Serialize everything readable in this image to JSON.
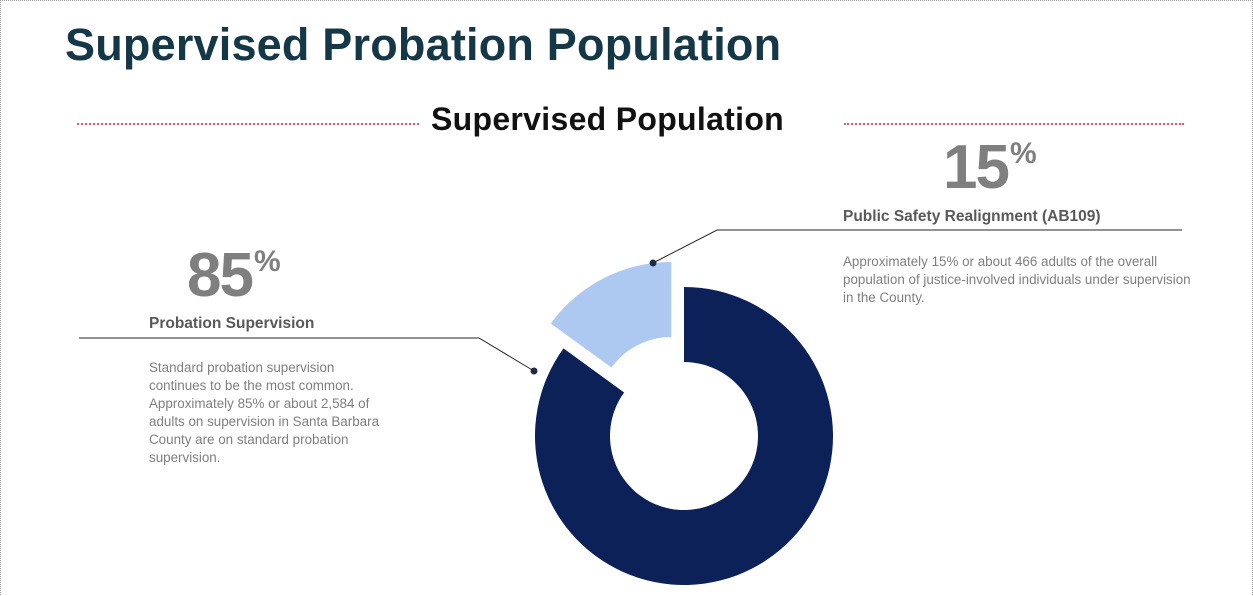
{
  "page": {
    "title": "Supervised Probation Population",
    "section_title": "Supervised Population"
  },
  "colors": {
    "title": "#153848",
    "probation": "#0b2157",
    "ab109": "#adc9f2",
    "divider_dots": "#d9586b",
    "annotation_text": "#7f7f7f"
  },
  "chart_data": {
    "type": "pie",
    "variant": "donut",
    "title": "Supervised Population",
    "slices": [
      {
        "name": "Public Safety Realignment (AB109)",
        "pct_label": "15",
        "pct_unit": "%",
        "value": 15,
        "count": 466,
        "color": "#adc9f2",
        "exploded": true,
        "description": "Approximately 15% or about 466 adults of the overall population of justice-involved individuals under supervision in the County."
      },
      {
        "name": "Probation Supervision",
        "pct_label": "85",
        "pct_unit": "%",
        "value": 85,
        "count": 2584,
        "color": "#0b2157",
        "exploded": false,
        "description": "Standard probation supervision continues to be the most common. Approximately 85% or about 2,584 of adults on supervision in Santa Barbara County are on standard probation supervision."
      }
    ]
  }
}
